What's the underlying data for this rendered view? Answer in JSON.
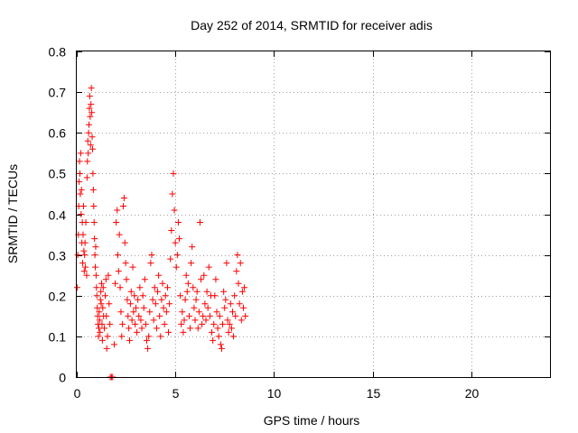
{
  "chart_data": {
    "type": "scatter",
    "title": "Day 252 of 2014, SRMTID for receiver adis",
    "xlabel": "GPS time / hours",
    "ylabel": "SRMTID / TECUs",
    "xlim": [
      0,
      24
    ],
    "ylim": [
      0,
      0.8
    ],
    "x_ticks": [
      0,
      5,
      10,
      15,
      20
    ],
    "y_ticks": [
      0,
      0.1,
      0.2,
      0.3,
      0.4,
      0.5,
      0.6,
      0.7,
      0.8
    ],
    "x_tick_labels": [
      "0",
      "5",
      "10",
      "15",
      "20"
    ],
    "y_tick_labels": [
      "0",
      "0.1",
      "0.2",
      "0.3",
      "0.4",
      "0.5",
      "0.6",
      "0.7",
      "0.8"
    ],
    "grid": true,
    "marker": "+",
    "series": [
      {
        "name": "adis",
        "color": "#ff0000",
        "points": [
          [
            0.02,
            0.22
          ],
          [
            0.05,
            0.3
          ],
          [
            0.08,
            0.35
          ],
          [
            0.1,
            0.42
          ],
          [
            0.12,
            0.48
          ],
          [
            0.14,
            0.53
          ],
          [
            0.16,
            0.5
          ],
          [
            0.18,
            0.45
          ],
          [
            0.2,
            0.55
          ],
          [
            0.22,
            0.4
          ],
          [
            0.24,
            0.46
          ],
          [
            0.26,
            0.33
          ],
          [
            0.28,
            0.38
          ],
          [
            0.3,
            0.28
          ],
          [
            0.32,
            0.35
          ],
          [
            0.34,
            0.42
          ],
          [
            0.36,
            0.31
          ],
          [
            0.38,
            0.26
          ],
          [
            0.4,
            0.3
          ],
          [
            0.42,
            0.33
          ],
          [
            0.44,
            0.27
          ],
          [
            0.46,
            0.38
          ],
          [
            0.5,
            0.25
          ],
          [
            0.52,
            0.49
          ],
          [
            0.54,
            0.53
          ],
          [
            0.56,
            0.58
          ],
          [
            0.58,
            0.55
          ],
          [
            0.6,
            0.6
          ],
          [
            0.62,
            0.62
          ],
          [
            0.64,
            0.66
          ],
          [
            0.66,
            0.69
          ],
          [
            0.68,
            0.64
          ],
          [
            0.7,
            0.57
          ],
          [
            0.72,
            0.67
          ],
          [
            0.74,
            0.71
          ],
          [
            0.76,
            0.65
          ],
          [
            0.78,
            0.59
          ],
          [
            0.8,
            0.56
          ],
          [
            0.82,
            0.5
          ],
          [
            0.84,
            0.46
          ],
          [
            0.86,
            0.42
          ],
          [
            0.88,
            0.38
          ],
          [
            0.9,
            0.34
          ],
          [
            0.92,
            0.3
          ],
          [
            0.94,
            0.27
          ],
          [
            0.96,
            0.32
          ],
          [
            0.98,
            0.25
          ],
          [
            1.0,
            0.22
          ],
          [
            1.02,
            0.2
          ],
          [
            1.04,
            0.17
          ],
          [
            1.06,
            0.15
          ],
          [
            1.08,
            0.13
          ],
          [
            1.1,
            0.1
          ],
          [
            1.12,
            0.12
          ],
          [
            1.14,
            0.16
          ],
          [
            1.16,
            0.14
          ],
          [
            1.18,
            0.11
          ],
          [
            1.2,
            0.19
          ],
          [
            1.22,
            0.21
          ],
          [
            1.24,
            0.18
          ],
          [
            1.26,
            0.23
          ],
          [
            1.28,
            0.13
          ],
          [
            1.3,
            0.09
          ],
          [
            1.32,
            0.17
          ],
          [
            1.34,
            0.22
          ],
          [
            1.36,
            0.15
          ],
          [
            1.4,
            0.12
          ],
          [
            1.44,
            0.2
          ],
          [
            1.48,
            0.24
          ],
          [
            1.5,
            0.15
          ],
          [
            1.52,
            0.07
          ],
          [
            1.56,
            0.1
          ],
          [
            1.6,
            0.25
          ],
          [
            1.64,
            0.18
          ],
          [
            1.68,
            0.13
          ],
          [
            1.7,
            0.0
          ],
          [
            1.76,
            0.0
          ],
          [
            1.82,
            0.0
          ],
          [
            1.9,
            0.08
          ],
          [
            1.95,
            0.23
          ],
          [
            2.0,
            0.38
          ],
          [
            2.05,
            0.41
          ],
          [
            2.08,
            0.3
          ],
          [
            2.12,
            0.26
          ],
          [
            2.16,
            0.35
          ],
          [
            2.2,
            0.22
          ],
          [
            2.24,
            0.16
          ],
          [
            2.28,
            0.1
          ],
          [
            2.32,
            0.13
          ],
          [
            2.36,
            0.42
          ],
          [
            2.4,
            0.44
          ],
          [
            2.44,
            0.33
          ],
          [
            2.48,
            0.28
          ],
          [
            2.52,
            0.24
          ],
          [
            2.56,
            0.19
          ],
          [
            2.6,
            0.15
          ],
          [
            2.64,
            0.12
          ],
          [
            2.68,
            0.09
          ],
          [
            2.72,
            0.18
          ],
          [
            2.76,
            0.21
          ],
          [
            2.8,
            0.14
          ],
          [
            2.84,
            0.27
          ],
          [
            2.88,
            0.16
          ],
          [
            2.92,
            0.2
          ],
          [
            2.96,
            0.13
          ],
          [
            3.0,
            0.17
          ],
          [
            3.05,
            0.11
          ],
          [
            3.1,
            0.19
          ],
          [
            3.15,
            0.15
          ],
          [
            3.2,
            0.22
          ],
          [
            3.25,
            0.14
          ],
          [
            3.3,
            0.12
          ],
          [
            3.35,
            0.2
          ],
          [
            3.4,
            0.17
          ],
          [
            3.45,
            0.24
          ],
          [
            3.5,
            0.13
          ],
          [
            3.55,
            0.09
          ],
          [
            3.6,
            0.07
          ],
          [
            3.65,
            0.1
          ],
          [
            3.7,
            0.16
          ],
          [
            3.75,
            0.28
          ],
          [
            3.8,
            0.3
          ],
          [
            3.85,
            0.19
          ],
          [
            3.9,
            0.14
          ],
          [
            3.95,
            0.22
          ],
          [
            4.0,
            0.18
          ],
          [
            4.05,
            0.12
          ],
          [
            4.1,
            0.21
          ],
          [
            4.15,
            0.25
          ],
          [
            4.2,
            0.15
          ],
          [
            4.25,
            0.1
          ],
          [
            4.3,
            0.19
          ],
          [
            4.35,
            0.23
          ],
          [
            4.4,
            0.17
          ],
          [
            4.45,
            0.13
          ],
          [
            4.5,
            0.2
          ],
          [
            4.55,
            0.16
          ],
          [
            4.6,
            0.22
          ],
          [
            4.65,
            0.11
          ],
          [
            4.7,
            0.18
          ],
          [
            4.75,
            0.29
          ],
          [
            4.8,
            0.36
          ],
          [
            4.85,
            0.45
          ],
          [
            4.9,
            0.5
          ],
          [
            4.95,
            0.41
          ],
          [
            5.0,
            0.33
          ],
          [
            5.05,
            0.27
          ],
          [
            5.1,
            0.3
          ],
          [
            5.15,
            0.38
          ],
          [
            5.2,
            0.34
          ],
          [
            5.25,
            0.2
          ],
          [
            5.3,
            0.13
          ],
          [
            5.35,
            0.16
          ],
          [
            5.4,
            0.11
          ],
          [
            5.45,
            0.14
          ],
          [
            5.5,
            0.19
          ],
          [
            5.55,
            0.25
          ],
          [
            5.6,
            0.21
          ],
          [
            5.65,
            0.23
          ],
          [
            5.7,
            0.15
          ],
          [
            5.75,
            0.12
          ],
          [
            5.8,
            0.28
          ],
          [
            5.85,
            0.32
          ],
          [
            5.9,
            0.22
          ],
          [
            5.95,
            0.17
          ],
          [
            6.0,
            0.14
          ],
          [
            6.05,
            0.19
          ],
          [
            6.1,
            0.21
          ],
          [
            6.15,
            0.12
          ],
          [
            6.2,
            0.16
          ],
          [
            6.25,
            0.38
          ],
          [
            6.3,
            0.24
          ],
          [
            6.35,
            0.13
          ],
          [
            6.4,
            0.15
          ],
          [
            6.45,
            0.25
          ],
          [
            6.5,
            0.18
          ],
          [
            6.55,
            0.14
          ],
          [
            6.6,
            0.21
          ],
          [
            6.65,
            0.17
          ],
          [
            6.7,
            0.27
          ],
          [
            6.75,
            0.15
          ],
          [
            6.8,
            0.2
          ],
          [
            6.85,
            0.11
          ],
          [
            6.9,
            0.09
          ],
          [
            6.95,
            0.13
          ],
          [
            7.0,
            0.2
          ],
          [
            7.05,
            0.24
          ],
          [
            7.1,
            0.16
          ],
          [
            7.15,
            0.12
          ],
          [
            7.2,
            0.1
          ],
          [
            7.25,
            0.15
          ],
          [
            7.3,
            0.08
          ],
          [
            7.35,
            0.07
          ],
          [
            7.4,
            0.13
          ],
          [
            7.45,
            0.21
          ],
          [
            7.5,
            0.17
          ],
          [
            7.55,
            0.19
          ],
          [
            7.6,
            0.28
          ],
          [
            7.65,
            0.14
          ],
          [
            7.7,
            0.11
          ],
          [
            7.75,
            0.13
          ],
          [
            7.8,
            0.18
          ],
          [
            7.85,
            0.12
          ],
          [
            7.9,
            0.16
          ],
          [
            7.95,
            0.1
          ],
          [
            8.0,
            0.2
          ],
          [
            8.05,
            0.15
          ],
          [
            8.1,
            0.26
          ],
          [
            8.15,
            0.3
          ],
          [
            8.2,
            0.23
          ],
          [
            8.25,
            0.18
          ],
          [
            8.3,
            0.28
          ],
          [
            8.35,
            0.14
          ],
          [
            8.4,
            0.21
          ],
          [
            8.45,
            0.17
          ],
          [
            8.5,
            0.22
          ],
          [
            8.55,
            0.15
          ]
        ]
      }
    ]
  }
}
